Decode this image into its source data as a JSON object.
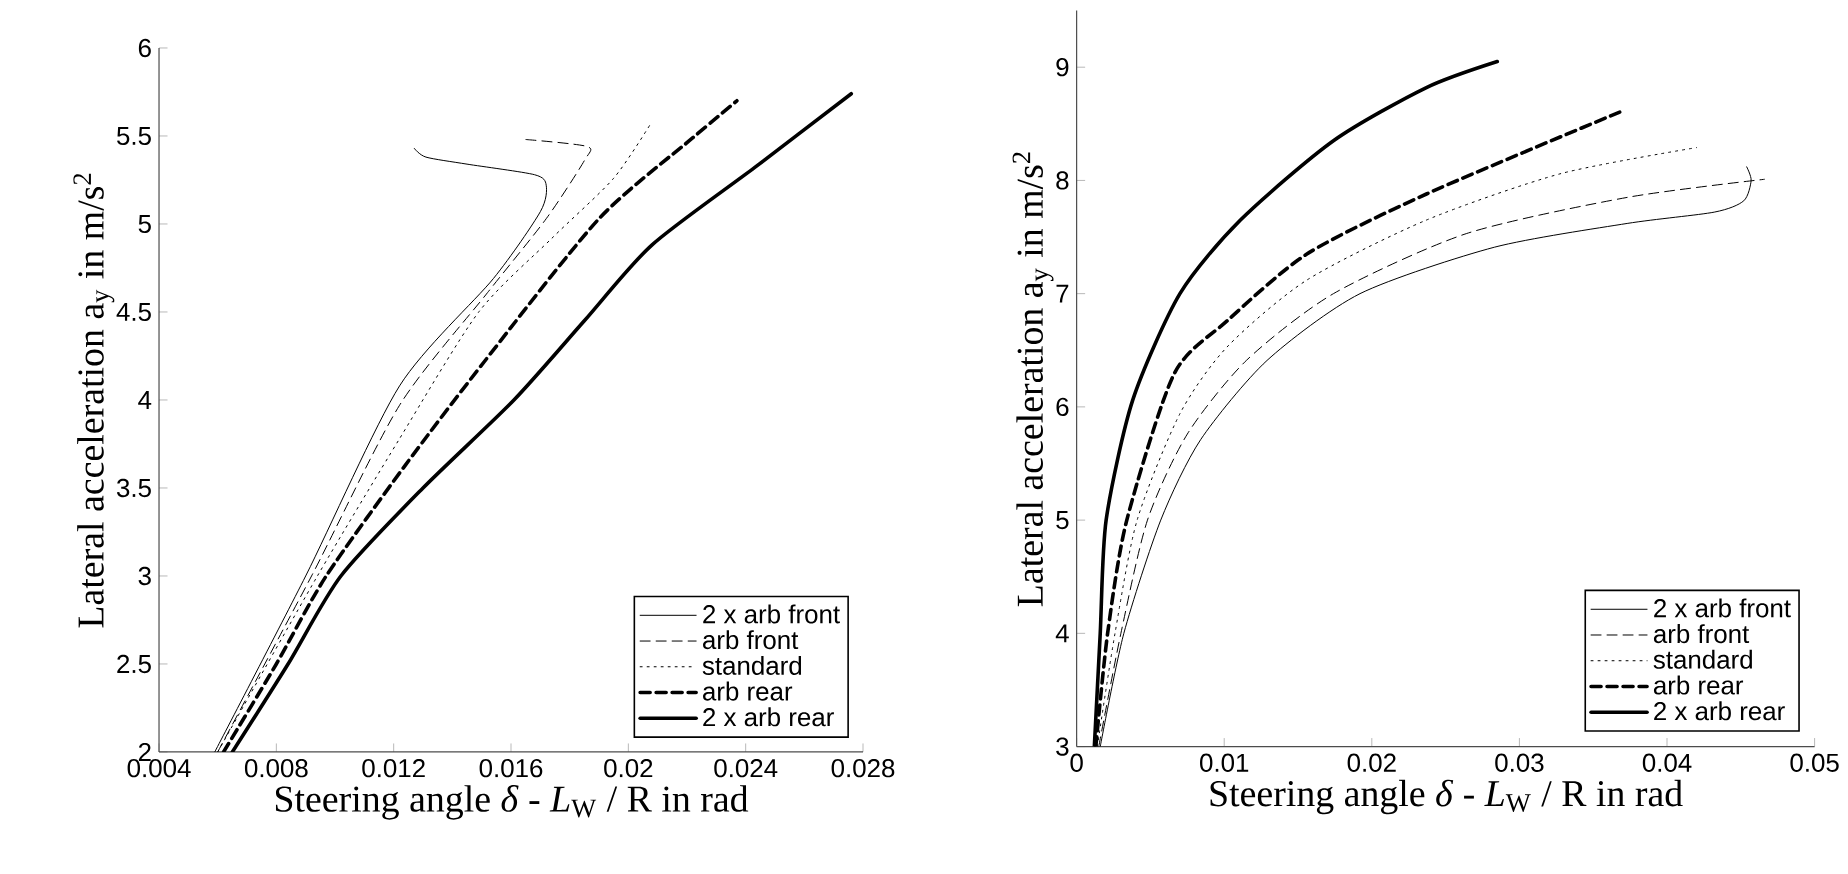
{
  "chart_data": [
    {
      "type": "line",
      "xlabel": "Steering angle *δ* - *L*$_{W}$ / R in rad",
      "ylabel": "Lateral acceleration a$_{y}$ in m/s$^{2}$",
      "xlim": [
        0.004,
        0.028
      ],
      "xticks": [
        0.004,
        0.008,
        0.012,
        0.016,
        0.02,
        0.024,
        0.028
      ],
      "ylim": [
        2,
        6
      ],
      "yticks": [
        2,
        2.5,
        3,
        3.5,
        4,
        4.5,
        5,
        5.5,
        6
      ],
      "legend": "bottom right",
      "series": [
        {
          "name": "2 x arb front",
          "color": "#000000",
          "line_style": "solid",
          "x": [
            0.0059,
            0.009,
            0.0122,
            0.0154,
            0.017,
            0.0172,
            0.0168,
            0.0145,
            0.0131,
            0.0127
          ],
          "values": [
            2,
            3,
            4.08,
            4.69,
            5.07,
            5.22,
            5.28,
            5.34,
            5.38,
            5.43
          ]
        },
        {
          "name": "arb front",
          "color": "#000000",
          "line_style": "dashed",
          "x": [
            0.006,
            0.0092,
            0.0122,
            0.0152,
            0.0172,
            0.0185,
            0.0186,
            0.0165
          ],
          "values": [
            2,
            3,
            3.97,
            4.61,
            5.03,
            5.36,
            5.44,
            5.48
          ]
        },
        {
          "name": "standard",
          "color": "#000000",
          "line_style": "dotted",
          "x": [
            0.006,
            0.0094,
            0.0122,
            0.0149,
            0.0174,
            0.0195,
            0.0208
          ],
          "values": [
            2,
            3,
            3.78,
            4.5,
            4.92,
            5.26,
            5.58
          ]
        },
        {
          "name": "arb rear",
          "color": "#000000",
          "line_style": "dashed",
          "x": [
            0.0062,
            0.008,
            0.0097,
            0.0124,
            0.0151,
            0.019,
            0.0222,
            0.0237
          ],
          "values": [
            2,
            2.5,
            3,
            3.63,
            4.22,
            5.03,
            5.49,
            5.7
          ]
        },
        {
          "name": "2 x arb rear",
          "color": "#000000",
          "line_style": "solid",
          "x": [
            0.0065,
            0.0084,
            0.0102,
            0.013,
            0.0161,
            0.0185,
            0.0208,
            0.0243,
            0.0276
          ],
          "values": [
            2,
            2.5,
            3,
            3.5,
            4,
            4.45,
            4.88,
            5.32,
            5.74
          ]
        }
      ]
    },
    {
      "type": "line",
      "xlabel": "Steering angle *δ* - *L*$_{W}$ / R in rad",
      "ylabel": "Lateral acceleration a$_{y}$ in m/s$^{2}$",
      "xlim": [
        0,
        0.05
      ],
      "xticks": [
        0,
        0.01,
        0.02,
        0.03,
        0.04,
        0.05
      ],
      "ylim": [
        3,
        9.5
      ],
      "yticks": [
        3,
        4,
        5,
        6,
        7,
        8,
        9
      ],
      "legend": "bottom right",
      "series": [
        {
          "name": "2 x arb front",
          "color": "#000000",
          "line_style": "solid",
          "x": [
            0.0016,
            0.0032,
            0.0057,
            0.0084,
            0.0129,
            0.0192,
            0.0283,
            0.0373,
            0.0432,
            0.0452,
            0.0457,
            0.0454
          ],
          "values": [
            3,
            4,
            5,
            5.71,
            6.41,
            7.0,
            7.41,
            7.62,
            7.72,
            7.82,
            8.0,
            8.12
          ]
        },
        {
          "name": "arb front",
          "color": "#000000",
          "line_style": "dashed",
          "x": [
            0.0015,
            0.003,
            0.0048,
            0.0075,
            0.0115,
            0.0174,
            0.0264,
            0.0373,
            0.0466
          ],
          "values": [
            3,
            4,
            5,
            5.76,
            6.41,
            7.0,
            7.53,
            7.85,
            8.01
          ]
        },
        {
          "name": "standard",
          "color": "#000000",
          "line_style": "dotted",
          "x": [
            0.0014,
            0.0026,
            0.0041,
            0.007,
            0.0102,
            0.0156,
            0.0237,
            0.0328,
            0.042
          ],
          "values": [
            3,
            4,
            5,
            5.94,
            6.53,
            7.12,
            7.65,
            8.06,
            8.29
          ]
        },
        {
          "name": "arb rear",
          "color": "#000000",
          "line_style": "dashed",
          "x": [
            0.0013,
            0.0021,
            0.0034,
            0.0066,
            0.0102,
            0.0156,
            0.0237,
            0.0371
          ],
          "values": [
            3,
            4,
            5,
            6.29,
            6.76,
            7.35,
            7.88,
            8.62
          ]
        },
        {
          "name": "2 x arb rear",
          "color": "#000000",
          "line_style": "solid",
          "x": [
            0.0012,
            0.0016,
            0.002,
            0.0038,
            0.007,
            0.0111,
            0.0174,
            0.0237,
            0.0285
          ],
          "values": [
            3,
            4,
            5,
            6.06,
            7.0,
            7.65,
            8.35,
            8.82,
            9.05
          ]
        }
      ]
    }
  ]
}
